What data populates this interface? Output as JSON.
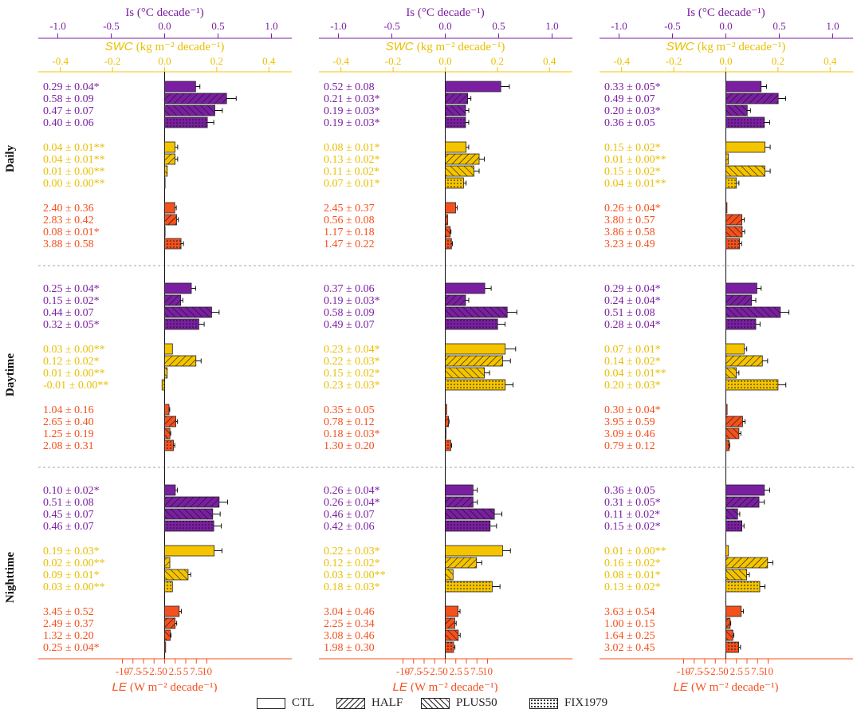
{
  "axis_labels": {
    "top_axis": "Is (°C decade⁻¹)",
    "middle_axis_var": "SWC",
    "middle_axis_unit": "(kg m⁻² decade⁻¹)",
    "bottom_axis_var": "LE",
    "bottom_axis_unit": "(W m⁻² decade⁻¹)"
  },
  "colors": {
    "Is": "#7b1fa2",
    "SWC": "#f5c400",
    "LE": "#f4511e",
    "SWC_text": "#e8bf00"
  },
  "chart_data": {
    "type": "bar",
    "orientation": "horizontal",
    "scenarios": [
      "CTL",
      "HALF",
      "PLUS50",
      "FIX1979"
    ],
    "periods": [
      "Daily",
      "Daytime",
      "Nighttime"
    ],
    "axes": {
      "Is": {
        "ticks": [
          "-1.0",
          "-0.5",
          "0.0",
          "0.5",
          "1.0"
        ],
        "tick_values": [
          -1,
          -0.5,
          0,
          0.5,
          1
        ]
      },
      "SWC": {
        "ticks": [
          "-0.4",
          "-0.2",
          "0.0",
          "0.2",
          "0.4"
        ],
        "tick_values": [
          -0.4,
          -0.2,
          0,
          0.2,
          0.4
        ]
      },
      "LE": {
        "ticks": [
          "-10",
          "-7.5",
          "-5",
          "-2.5",
          "0",
          "2.5",
          "5",
          "7.5",
          "10"
        ],
        "tick_values": [
          -10,
          -7.5,
          -5,
          -2.5,
          0,
          2.5,
          5,
          7.5,
          10
        ]
      }
    },
    "panels": [
      {
        "rows": [
          {
            "Is": {
              "values": [
                0.29,
                0.58,
                0.47,
                0.4
              ],
              "errors": [
                0.04,
                0.09,
                0.07,
                0.06
              ],
              "labels": [
                "0.29 ± 0.04*",
                "0.58 ± 0.09",
                "0.47 ± 0.07",
                "0.40 ± 0.06"
              ]
            },
            "SWC": {
              "values": [
                0.04,
                0.04,
                0.01,
                0.0
              ],
              "errors": [
                0.01,
                0.01,
                0.0,
                0.0
              ],
              "labels": [
                "0.04 ± 0.01**",
                "0.04 ± 0.01**",
                "0.01 ± 0.00**",
                "0.00 ± 0.00**"
              ]
            },
            "LE": {
              "values": [
                2.4,
                2.83,
                0.08,
                3.88
              ],
              "errors": [
                0.36,
                0.42,
                0.01,
                0.58
              ],
              "labels": [
                "2.40 ± 0.36",
                "2.83 ± 0.42",
                "0.08 ± 0.01*",
                "3.88 ± 0.58"
              ]
            }
          },
          {
            "Is": {
              "values": [
                0.25,
                0.15,
                0.44,
                0.32
              ],
              "errors": [
                0.04,
                0.02,
                0.07,
                0.05
              ],
              "labels": [
                "0.25 ± 0.04*",
                "0.15 ± 0.02*",
                "0.44 ± 0.07",
                "0.32 ± 0.05*"
              ]
            },
            "SWC": {
              "values": [
                0.03,
                0.12,
                0.01,
                -0.01
              ],
              "errors": [
                0.0,
                0.02,
                0.0,
                0.0
              ],
              "labels": [
                "0.03 ± 0.00**",
                "0.12 ± 0.02*",
                "0.01 ± 0.00**",
                "-0.01 ± 0.00**"
              ]
            },
            "LE": {
              "values": [
                1.04,
                2.65,
                1.25,
                2.08
              ],
              "errors": [
                0.16,
                0.4,
                0.19,
                0.31
              ],
              "labels": [
                "1.04 ± 0.16",
                "2.65 ± 0.40",
                "1.25 ± 0.19",
                "2.08 ± 0.31"
              ]
            }
          },
          {
            "Is": {
              "values": [
                0.1,
                0.51,
                0.45,
                0.46
              ],
              "errors": [
                0.02,
                0.08,
                0.07,
                0.07
              ],
              "labels": [
                "0.10 ± 0.02*",
                "0.51 ± 0.08",
                "0.45 ± 0.07",
                "0.46 ± 0.07"
              ]
            },
            "SWC": {
              "values": [
                0.19,
                0.02,
                0.09,
                0.03
              ],
              "errors": [
                0.03,
                0.0,
                0.01,
                0.0
              ],
              "labels": [
                "0.19 ± 0.03*",
                "0.02 ± 0.00**",
                "0.09 ± 0.01*",
                "0.03 ± 0.00**"
              ]
            },
            "LE": {
              "values": [
                3.45,
                2.49,
                1.32,
                0.25
              ],
              "errors": [
                0.52,
                0.37,
                0.2,
                0.04
              ],
              "labels": [
                "3.45 ± 0.52",
                "2.49 ± 0.37",
                "1.32 ± 0.20",
                "0.25 ± 0.04*"
              ]
            }
          }
        ]
      },
      {
        "rows": [
          {
            "Is": {
              "values": [
                0.52,
                0.21,
                0.19,
                0.19
              ],
              "errors": [
                0.08,
                0.03,
                0.03,
                0.03
              ],
              "labels": [
                "0.52 ± 0.08",
                "0.21 ± 0.03*",
                "0.19 ± 0.03*",
                "0.19 ± 0.03*"
              ]
            },
            "SWC": {
              "values": [
                0.08,
                0.13,
                0.11,
                0.07
              ],
              "errors": [
                0.01,
                0.02,
                0.02,
                0.01
              ],
              "labels": [
                "0.08 ± 0.01*",
                "0.13 ± 0.02*",
                "0.11 ± 0.02*",
                "0.07 ± 0.01*"
              ]
            },
            "LE": {
              "values": [
                2.45,
                0.56,
                1.17,
                1.47
              ],
              "errors": [
                0.37,
                0.08,
                0.18,
                0.22
              ],
              "labels": [
                "2.45 ± 0.37",
                "0.56 ± 0.08",
                "1.17 ± 0.18",
                "1.47 ± 0.22"
              ]
            }
          },
          {
            "Is": {
              "values": [
                0.37,
                0.19,
                0.58,
                0.49
              ],
              "errors": [
                0.06,
                0.03,
                0.09,
                0.07
              ],
              "labels": [
                "0.37 ± 0.06",
                "0.19 ± 0.03*",
                "0.58 ± 0.09",
                "0.49 ± 0.07"
              ]
            },
            "SWC": {
              "values": [
                0.23,
                0.22,
                0.15,
                0.23
              ],
              "errors": [
                0.04,
                0.03,
                0.02,
                0.03
              ],
              "labels": [
                "0.23 ± 0.04*",
                "0.22 ± 0.03*",
                "0.15 ± 0.02*",
                "0.23 ± 0.03*"
              ]
            },
            "LE": {
              "values": [
                0.35,
                0.78,
                0.18,
                1.3
              ],
              "errors": [
                0.05,
                0.12,
                0.03,
                0.2
              ],
              "labels": [
                "0.35 ± 0.05",
                "0.78 ± 0.12",
                "0.18 ± 0.03*",
                "1.30 ± 0.20"
              ]
            }
          },
          {
            "Is": {
              "values": [
                0.26,
                0.26,
                0.46,
                0.42
              ],
              "errors": [
                0.04,
                0.04,
                0.07,
                0.06
              ],
              "labels": [
                "0.26 ± 0.04*",
                "0.26 ± 0.04*",
                "0.46 ± 0.07",
                "0.42 ± 0.06"
              ]
            },
            "SWC": {
              "values": [
                0.22,
                0.12,
                0.03,
                0.18
              ],
              "errors": [
                0.03,
                0.02,
                0.0,
                0.03
              ],
              "labels": [
                "0.22 ± 0.03*",
                "0.12 ± 0.02*",
                "0.03 ± 0.00**",
                "0.18 ± 0.03*"
              ]
            },
            "LE": {
              "values": [
                3.04,
                2.25,
                3.08,
                1.98
              ],
              "errors": [
                0.46,
                0.34,
                0.46,
                0.3
              ],
              "labels": [
                "3.04 ± 0.46",
                "2.25 ± 0.34",
                "3.08 ± 0.46",
                "1.98 ± 0.30"
              ]
            }
          }
        ]
      },
      {
        "rows": [
          {
            "Is": {
              "values": [
                0.33,
                0.49,
                0.2,
                0.36
              ],
              "errors": [
                0.05,
                0.07,
                0.03,
                0.05
              ],
              "labels": [
                "0.33 ± 0.05*",
                "0.49 ± 0.07",
                "0.20 ± 0.03*",
                "0.36 ± 0.05"
              ]
            },
            "SWC": {
              "values": [
                0.15,
                0.01,
                0.15,
                0.04
              ],
              "errors": [
                0.02,
                0.0,
                0.02,
                0.01
              ],
              "labels": [
                "0.15 ± 0.02*",
                "0.01 ± 0.00**",
                "0.15 ± 0.02*",
                "0.04 ± 0.01**"
              ]
            },
            "LE": {
              "values": [
                0.26,
                3.8,
                3.86,
                3.23
              ],
              "errors": [
                0.04,
                0.57,
                0.58,
                0.49
              ],
              "labels": [
                "0.26 ± 0.04*",
                "3.80 ± 0.57",
                "3.86 ± 0.58",
                "3.23 ± 0.49"
              ]
            }
          },
          {
            "Is": {
              "values": [
                0.29,
                0.24,
                0.51,
                0.28
              ],
              "errors": [
                0.04,
                0.04,
                0.08,
                0.04
              ],
              "labels": [
                "0.29 ± 0.04*",
                "0.24 ± 0.04*",
                "0.51 ± 0.08",
                "0.28 ± 0.04*"
              ]
            },
            "SWC": {
              "values": [
                0.07,
                0.14,
                0.04,
                0.2
              ],
              "errors": [
                0.01,
                0.02,
                0.01,
                0.03
              ],
              "labels": [
                "0.07 ± 0.01*",
                "0.14 ± 0.02*",
                "0.04 ± 0.01**",
                "0.20 ± 0.03*"
              ]
            },
            "LE": {
              "values": [
                0.3,
                3.95,
                3.09,
                0.79
              ],
              "errors": [
                0.04,
                0.59,
                0.46,
                0.12
              ],
              "labels": [
                "0.30 ± 0.04*",
                "3.95 ± 0.59",
                "3.09 ± 0.46",
                "0.79 ± 0.12"
              ]
            }
          },
          {
            "Is": {
              "values": [
                0.36,
                0.31,
                0.11,
                0.15
              ],
              "errors": [
                0.05,
                0.05,
                0.02,
                0.02
              ],
              "labels": [
                "0.36 ± 0.05",
                "0.31 ± 0.05*",
                "0.11 ± 0.02*",
                "0.15 ± 0.02*"
              ]
            },
            "SWC": {
              "values": [
                0.01,
                0.16,
                0.08,
                0.13
              ],
              "errors": [
                0.0,
                0.02,
                0.01,
                0.02
              ],
              "labels": [
                "0.01 ± 0.00**",
                "0.16 ± 0.02*",
                "0.08 ± 0.01*",
                "0.13 ± 0.02*"
              ]
            },
            "LE": {
              "values": [
                3.63,
                1.0,
                1.64,
                3.02
              ],
              "errors": [
                0.54,
                0.15,
                0.25,
                0.45
              ],
              "labels": [
                "3.63 ± 0.54",
                "1.00 ± 0.15",
                "1.64 ± 0.25",
                "3.02 ± 0.45"
              ]
            }
          }
        ]
      }
    ]
  }
}
